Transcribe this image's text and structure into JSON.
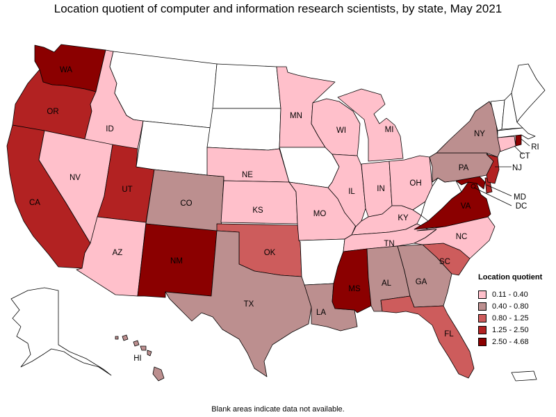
{
  "title": "Location quotient of computer and information research scientists, by state, May 2021",
  "footnote": "Blank areas indicate data not available.",
  "legend": {
    "title": "Location quotient",
    "items": [
      {
        "label": "0.11 - 0.40",
        "color": "#ffc0cb"
      },
      {
        "label": "0.40 - 0.80",
        "color": "#bc8f8f"
      },
      {
        "label": "0.80 - 1.25",
        "color": "#cd5c5c"
      },
      {
        "label": "1.25 - 2.50",
        "color": "#b22222"
      },
      {
        "label": "2.50 - 4.68",
        "color": "#8b0000"
      }
    ]
  },
  "states": {
    "WA": {
      "label": "WA",
      "class": 4
    },
    "OR": {
      "label": "OR",
      "class": 3
    },
    "CA": {
      "label": "CA",
      "class": 3
    },
    "ID": {
      "label": "ID",
      "class": 0
    },
    "NV": {
      "label": "NV",
      "class": 0
    },
    "UT": {
      "label": "UT",
      "class": 3
    },
    "AZ": {
      "label": "AZ",
      "class": 0
    },
    "MT": {
      "label": "",
      "class": null
    },
    "WY": {
      "label": "",
      "class": null
    },
    "CO": {
      "label": "CO",
      "class": 1
    },
    "NM": {
      "label": "NM",
      "class": 4
    },
    "ND": {
      "label": "",
      "class": null
    },
    "SD": {
      "label": "",
      "class": null
    },
    "NE": {
      "label": "NE",
      "class": 0
    },
    "KS": {
      "label": "KS",
      "class": 0
    },
    "OK": {
      "label": "OK",
      "class": 2
    },
    "TX": {
      "label": "TX",
      "class": 1
    },
    "MN": {
      "label": "MN",
      "class": 0
    },
    "IA": {
      "label": "",
      "class": null
    },
    "MO": {
      "label": "MO",
      "class": 0
    },
    "AR": {
      "label": "",
      "class": null
    },
    "LA": {
      "label": "LA",
      "class": 1
    },
    "WI": {
      "label": "WI",
      "class": 0
    },
    "IL": {
      "label": "IL",
      "class": 0
    },
    "MI": {
      "label": "MI",
      "class": 0
    },
    "IN": {
      "label": "IN",
      "class": 0
    },
    "OH": {
      "label": "OH",
      "class": 0
    },
    "KY": {
      "label": "KY",
      "class": 0
    },
    "TN": {
      "label": "TN",
      "class": 0
    },
    "MS": {
      "label": "MS",
      "class": 4
    },
    "AL": {
      "label": "AL",
      "class": 1
    },
    "GA": {
      "label": "GA",
      "class": 1
    },
    "FL": {
      "label": "FL",
      "class": 2
    },
    "SC": {
      "label": "SC",
      "class": 2
    },
    "NC": {
      "label": "NC",
      "class": 0
    },
    "VA": {
      "label": "VA",
      "class": 4
    },
    "WV": {
      "label": "",
      "class": null
    },
    "MD": {
      "label": "MD",
      "class": 4
    },
    "DE": {
      "label": "",
      "class": 3
    },
    "DC": {
      "label": "DC",
      "class": 4
    },
    "PA": {
      "label": "PA",
      "class": 1
    },
    "NJ": {
      "label": "NJ",
      "class": 3
    },
    "NY": {
      "label": "NY",
      "class": 1
    },
    "CT": {
      "label": "CT",
      "class": 0
    },
    "RI": {
      "label": "RI",
      "class": 4
    },
    "MA": {
      "label": "",
      "class": null
    },
    "VT": {
      "label": "",
      "class": null
    },
    "NH": {
      "label": "",
      "class": null
    },
    "ME": {
      "label": "",
      "class": null
    },
    "AK": {
      "label": "",
      "class": null
    },
    "HI": {
      "label": "HI",
      "class": 1
    },
    "PR": {
      "label": "",
      "class": null
    }
  }
}
